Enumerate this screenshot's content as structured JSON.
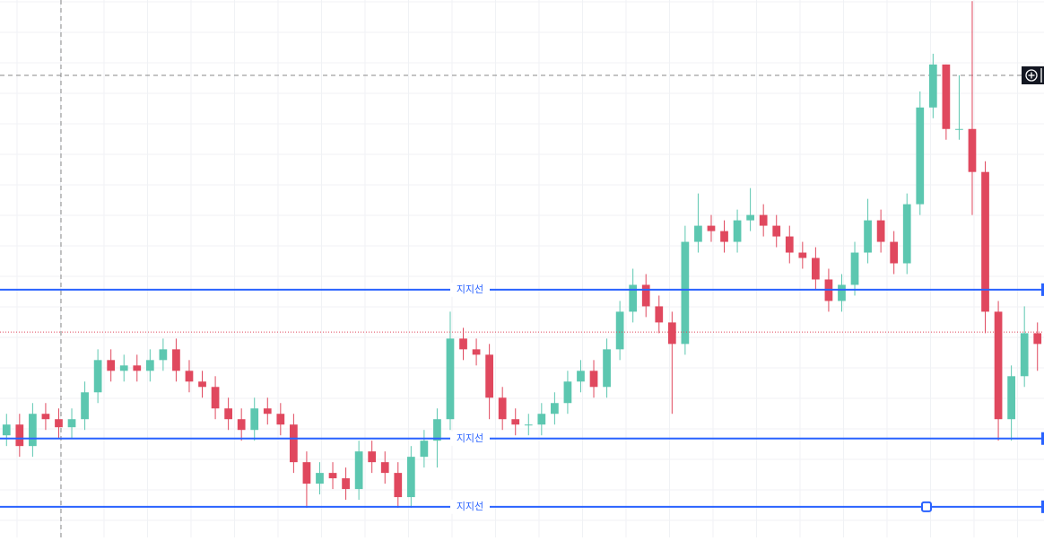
{
  "chart_data": {
    "type": "candlestick",
    "ylim": [
      0,
      100
    ],
    "up_color": "#5cc7b0",
    "down_color": "#e0485e",
    "open": [
      19,
      21,
      17,
      23,
      22,
      20.5,
      22,
      27,
      33,
      31,
      32,
      31,
      33,
      35,
      31,
      29,
      28,
      24,
      22,
      20,
      24,
      23,
      21,
      14,
      10,
      12,
      11,
      9,
      16,
      14,
      12,
      7.5,
      15,
      18,
      22,
      37,
      35,
      34,
      26,
      22,
      21,
      21,
      23,
      25,
      29,
      31,
      28,
      35,
      42,
      47,
      43,
      40,
      36,
      55,
      58,
      57,
      55,
      59,
      60,
      58,
      56,
      53,
      52,
      48,
      44,
      47,
      53,
      59,
      55,
      51,
      62,
      80,
      88,
      76,
      76,
      68,
      42,
      22,
      30,
      38
    ],
    "high": [
      23,
      23,
      25,
      25,
      24,
      24,
      29,
      35,
      35,
      34,
      34,
      35,
      37,
      37,
      33,
      31,
      30,
      26,
      24,
      26,
      26,
      25,
      23,
      16,
      14,
      14,
      13,
      18,
      18,
      16,
      14,
      17,
      20,
      24,
      42,
      39,
      37,
      36,
      28,
      24,
      23,
      25,
      27,
      31,
      33,
      33,
      37,
      44,
      50,
      49,
      45,
      42,
      58,
      64,
      60,
      59,
      61,
      65,
      62,
      60,
      58,
      55,
      54,
      50,
      49,
      55,
      63,
      61,
      57,
      64,
      83,
      90,
      88,
      86,
      99.8,
      70,
      44,
      32,
      43,
      40
    ],
    "low": [
      17,
      15,
      15,
      20,
      18.5,
      18.5,
      20,
      25,
      29,
      29,
      29,
      29,
      31,
      29,
      27,
      26,
      22,
      20,
      18,
      18,
      21,
      19,
      12,
      5.5,
      8,
      9,
      7,
      7,
      12,
      10,
      5.5,
      5.5,
      13,
      13,
      20,
      33,
      32,
      22,
      20,
      19,
      19,
      19,
      21,
      23,
      27,
      26,
      26,
      33,
      40,
      41,
      38,
      23,
      34,
      53,
      55,
      53,
      53,
      57,
      56,
      54,
      51,
      50,
      46,
      42,
      42,
      45,
      51,
      53,
      49,
      49,
      60,
      78,
      74,
      74,
      60,
      38,
      18,
      18,
      28,
      31
    ],
    "close": [
      21,
      17,
      23,
      22,
      20.5,
      22,
      27,
      33,
      31,
      32,
      31,
      33,
      35,
      31,
      29,
      28,
      24,
      22,
      20,
      24,
      23,
      21,
      14,
      10,
      12,
      11,
      9,
      16,
      14,
      12,
      7.5,
      15,
      18,
      22,
      37,
      35,
      34,
      26,
      22,
      21,
      21,
      23,
      25,
      29,
      31,
      28,
      35,
      42,
      47,
      43,
      40,
      36,
      55,
      58,
      57,
      55,
      59,
      60,
      58,
      56,
      53,
      52,
      48,
      44,
      47,
      53,
      59,
      55,
      51,
      62,
      80,
      88,
      76,
      76,
      68,
      42,
      22,
      30,
      38,
      36
    ],
    "price_line": 38.2,
    "support_lines": [
      {
        "label": "지지선",
        "value": 46.1
      },
      {
        "label": "지지선",
        "value": 18.4
      },
      {
        "label": "지지선",
        "value": 5.7
      }
    ]
  }
}
